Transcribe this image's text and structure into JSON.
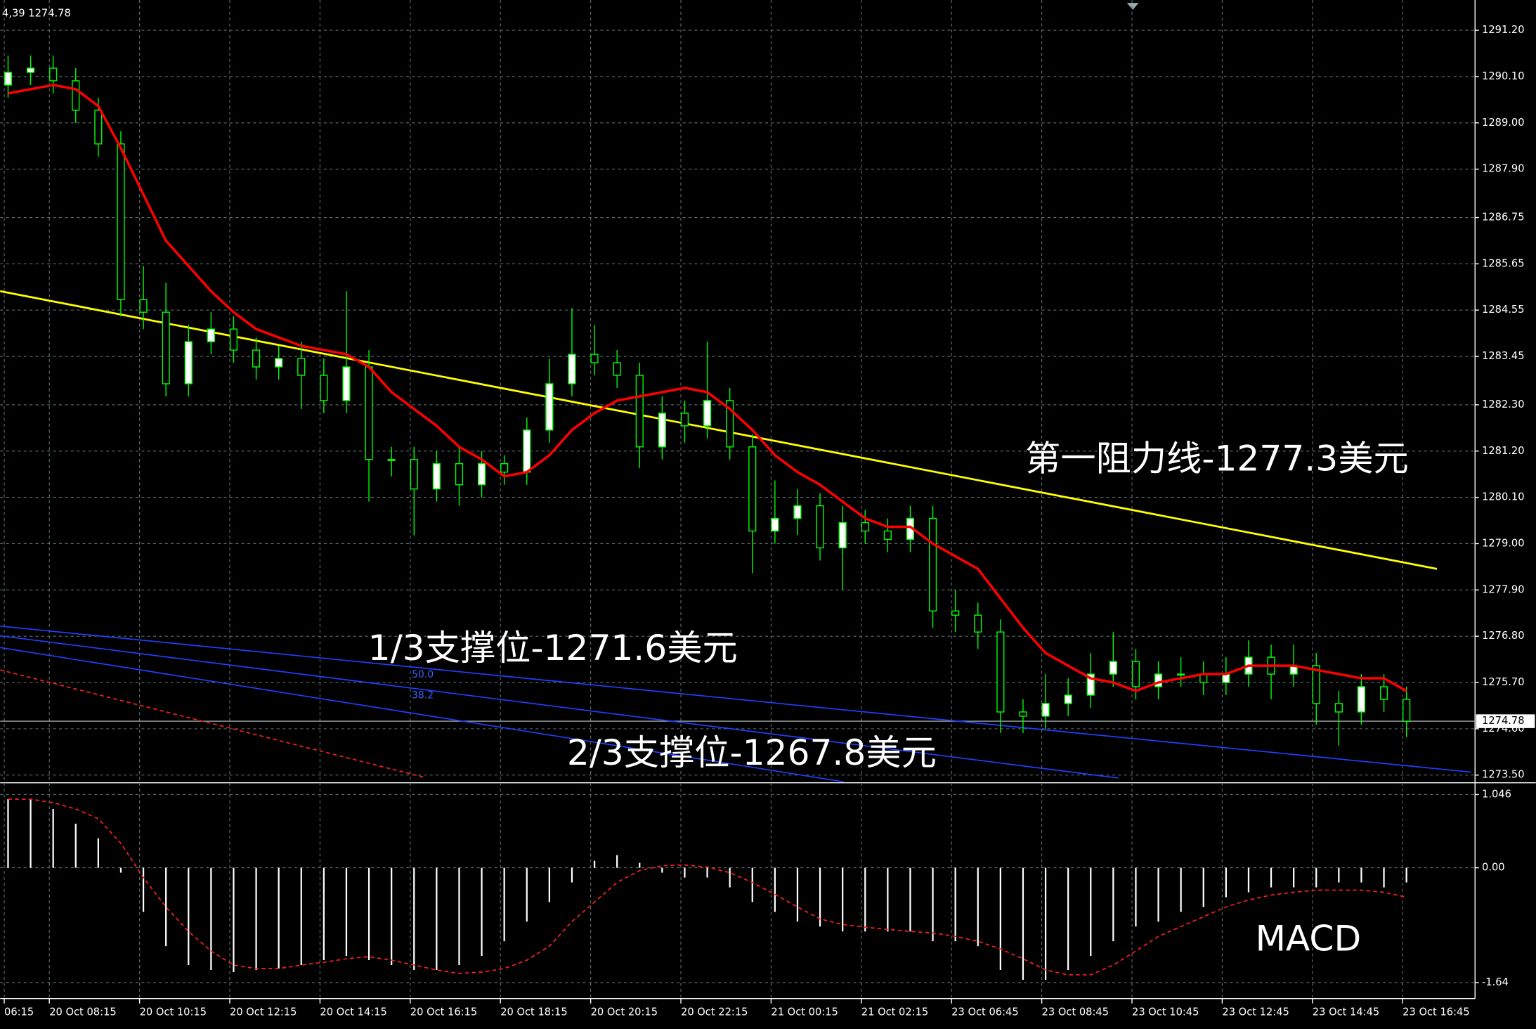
{
  "chart_data": [
    {
      "type": "candlestick",
      "header": "4,39 1274.78",
      "x": [
        0,
        1,
        2,
        3,
        4,
        5,
        6,
        7,
        8,
        9,
        10,
        11,
        12,
        13,
        14,
        15,
        16,
        17,
        18,
        19,
        20,
        21,
        22,
        23,
        24,
        25,
        26,
        27,
        28,
        29,
        30,
        31,
        32,
        33,
        34,
        35,
        36,
        37,
        38,
        39,
        40,
        41,
        42,
        43,
        44,
        45,
        46,
        47,
        48,
        49,
        50,
        51,
        52,
        53,
        54,
        55,
        56,
        57,
        58,
        59,
        60,
        61,
        62
      ],
      "open": [
        1289.9,
        1290.2,
        1290.3,
        1290.0,
        1289.3,
        1288.5,
        1284.8,
        1284.5,
        1282.8,
        1283.8,
        1284.1,
        1283.6,
        1283.2,
        1283.4,
        1283.0,
        1282.4,
        1283.2,
        1281.0,
        1281.0,
        1280.3,
        1280.9,
        1280.4,
        1280.9,
        1280.7,
        1281.7,
        1282.8,
        1283.5,
        1283.3,
        1283.0,
        1281.3,
        1282.1,
        1281.8,
        1282.4,
        1281.3,
        1279.3,
        1279.6,
        1279.9,
        1278.9,
        1279.5,
        1279.3,
        1279.1,
        1279.6,
        1277.4,
        1277.3,
        1276.9,
        1275.0,
        1274.9,
        1275.2,
        1275.4,
        1275.9,
        1276.2,
        1275.6,
        1275.9,
        1275.9,
        1275.7,
        1275.9,
        1276.3,
        1275.9,
        1276.1,
        1275.2,
        1275.0,
        1275.6,
        1275.3
      ],
      "high": [
        1290.6,
        1290.6,
        1290.6,
        1290.3,
        1289.6,
        1288.8,
        1285.6,
        1285.2,
        1284.2,
        1284.5,
        1284.4,
        1283.9,
        1283.7,
        1283.8,
        1283.4,
        1285.0,
        1283.6,
        1281.3,
        1281.3,
        1281.2,
        1281.3,
        1281.2,
        1281.1,
        1282.0,
        1283.4,
        1284.6,
        1284.2,
        1283.6,
        1283.3,
        1282.5,
        1282.4,
        1283.8,
        1282.7,
        1281.6,
        1280.5,
        1280.3,
        1280.2,
        1279.9,
        1279.8,
        1279.6,
        1279.9,
        1279.9,
        1277.9,
        1277.6,
        1277.2,
        1275.3,
        1275.9,
        1275.8,
        1276.4,
        1276.9,
        1276.5,
        1276.2,
        1276.3,
        1276.2,
        1276.3,
        1276.7,
        1276.6,
        1276.6,
        1276.4,
        1275.5,
        1275.9,
        1275.9,
        1275.6
      ],
      "low": [
        1289.6,
        1289.9,
        1289.7,
        1289.0,
        1288.2,
        1284.4,
        1284.1,
        1282.5,
        1282.5,
        1283.5,
        1283.3,
        1282.9,
        1282.9,
        1282.2,
        1282.1,
        1282.1,
        1280.0,
        1280.6,
        1279.2,
        1280.0,
        1279.9,
        1280.1,
        1280.4,
        1280.4,
        1281.4,
        1282.5,
        1283.0,
        1282.7,
        1280.8,
        1281.0,
        1281.4,
        1281.5,
        1281.0,
        1278.3,
        1279.0,
        1279.2,
        1278.6,
        1277.9,
        1279.0,
        1278.8,
        1278.8,
        1277.0,
        1276.9,
        1276.5,
        1274.5,
        1274.5,
        1274.6,
        1274.9,
        1275.1,
        1275.6,
        1275.3,
        1275.3,
        1275.6,
        1275.4,
        1275.4,
        1275.6,
        1275.3,
        1275.6,
        1274.7,
        1274.2,
        1274.7,
        1275.0,
        1274.4
      ],
      "close": [
        1290.2,
        1290.3,
        1290.0,
        1289.3,
        1288.5,
        1284.8,
        1284.5,
        1282.8,
        1283.8,
        1284.1,
        1283.6,
        1283.2,
        1283.4,
        1283.0,
        1282.4,
        1283.2,
        1281.0,
        1281.0,
        1280.3,
        1280.9,
        1280.4,
        1280.9,
        1280.7,
        1281.7,
        1282.8,
        1283.5,
        1283.3,
        1283.0,
        1281.3,
        1282.1,
        1281.8,
        1282.4,
        1281.3,
        1279.3,
        1279.6,
        1279.9,
        1278.9,
        1279.5,
        1279.3,
        1279.1,
        1279.6,
        1277.4,
        1277.3,
        1276.9,
        1275.0,
        1274.9,
        1275.2,
        1275.4,
        1275.9,
        1276.2,
        1275.6,
        1275.9,
        1275.9,
        1275.7,
        1275.9,
        1276.3,
        1275.9,
        1276.1,
        1275.2,
        1275.0,
        1275.6,
        1275.3,
        1274.78
      ],
      "up_color": "#ffffff",
      "down_color": "#000000",
      "wick_color": "#00ff00",
      "ma": {
        "color": "#ff0000",
        "values": [
          1289.7,
          1289.8,
          1289.9,
          1289.8,
          1289.4,
          1288.4,
          1287.3,
          1286.2,
          1285.6,
          1285.0,
          1284.5,
          1284.1,
          1283.9,
          1283.7,
          1283.6,
          1283.5,
          1283.2,
          1282.6,
          1282.2,
          1281.8,
          1281.3,
          1281.0,
          1280.6,
          1280.7,
          1281.1,
          1281.7,
          1282.1,
          1282.4,
          1282.5,
          1282.6,
          1282.7,
          1282.6,
          1282.2,
          1281.7,
          1281.1,
          1280.7,
          1280.4,
          1280.0,
          1279.6,
          1279.4,
          1279.4,
          1279.0,
          1278.7,
          1278.4,
          1277.7,
          1277.0,
          1276.4,
          1276.1,
          1275.8,
          1275.7,
          1275.5,
          1275.7,
          1275.8,
          1275.9,
          1275.9,
          1276.1,
          1276.1,
          1276.1,
          1276.0,
          1275.9,
          1275.8,
          1275.8,
          1275.5
        ]
      },
      "lines": [
        {
          "color": "#ffff00",
          "x": [
            -0.35,
            63.35
          ],
          "values": [
            1285.0,
            1278.4
          ]
        },
        {
          "color": "#2040ff",
          "x": [
            -0.35,
            64.87
          ],
          "values": [
            1277.04,
            1273.57
          ]
        },
        {
          "color": "#2040ff",
          "x": [
            -0.35,
            49.22
          ],
          "values": [
            1276.81,
            1273.43
          ]
        },
        {
          "color": "#2040ff",
          "x": [
            -0.35,
            37.04
          ],
          "values": [
            1276.53,
            1273.34
          ]
        },
        {
          "color": "#ff2020",
          "dashed": true,
          "x": [
            -0.35,
            18.43
          ],
          "values": [
            1276.0,
            1273.45
          ]
        }
      ],
      "fib_labels": [
        {
          "text": "50.0",
          "x": 17.9,
          "y": 1275.88
        },
        {
          "text": "38.2",
          "x": 17.9,
          "y": 1275.39
        }
      ],
      "annotations": [
        {
          "text": "第一阻力线-1277.3美元",
          "x": 45.1,
          "y": 1280.96
        },
        {
          "text": "1/3支撑位-1271.6美元",
          "x": 15.96,
          "y": 1276.46
        },
        {
          "text": "2/3支撑位-1267.8美元",
          "x": 24.78,
          "y": 1273.97
        }
      ],
      "last_price": 1274.78,
      "xlim": [
        -0.35,
        65.04
      ],
      "ylim": [
        1273.34,
        1291.92
      ],
      "grid": true,
      "yticks": [
        {
          "value": 1291.2,
          "label": "1291.20"
        },
        {
          "value": 1290.1,
          "label": "1290.10"
        },
        {
          "value": 1289,
          "label": "1289.00"
        },
        {
          "value": 1287.9,
          "label": "1287.90"
        },
        {
          "value": 1286.75,
          "label": "1286.75"
        },
        {
          "value": 1285.65,
          "label": "1285.65"
        },
        {
          "value": 1284.55,
          "label": "1284.55"
        },
        {
          "value": 1283.45,
          "label": "1283.45"
        },
        {
          "value": 1282.3,
          "label": "1282.30"
        },
        {
          "value": 1281.2,
          "label": "1281.20"
        },
        {
          "value": 1280.1,
          "label": "1280.10"
        },
        {
          "value": 1279,
          "label": "1279.00"
        },
        {
          "value": 1277.9,
          "label": "1277.90"
        },
        {
          "value": 1276.8,
          "label": "1276.80"
        },
        {
          "value": 1275.7,
          "label": "1275.70"
        },
        {
          "value": 1274.6,
          "label": "1274.60"
        },
        {
          "value": 1273.5,
          "label": "1273.50"
        }
      ],
      "xticks": [
        {
          "value": -0.17,
          "label": "06:15"
        },
        {
          "value": 1.83,
          "label": "20 Oct 08:15"
        },
        {
          "value": 5.83,
          "label": "20 Oct 10:15"
        },
        {
          "value": 9.83,
          "label": "20 Oct 12:15"
        },
        {
          "value": 13.83,
          "label": "20 Oct 14:15"
        },
        {
          "value": 17.83,
          "label": "20 Oct 16:15"
        },
        {
          "value": 21.83,
          "label": "20 Oct 18:15"
        },
        {
          "value": 25.83,
          "label": "20 Oct 20:15"
        },
        {
          "value": 29.83,
          "label": "20 Oct 22:15"
        },
        {
          "value": 33.83,
          "label": "21 Oct 00:15"
        },
        {
          "value": 37.83,
          "label": "21 Oct 02:15"
        },
        {
          "value": 41.83,
          "label": "23 Oct 06:45"
        },
        {
          "value": 45.83,
          "label": "23 Oct 08:45"
        },
        {
          "value": 49.83,
          "label": "23 Oct 10:45"
        },
        {
          "value": 53.83,
          "label": "23 Oct 12:45"
        },
        {
          "value": 57.83,
          "label": "23 Oct 14:45"
        },
        {
          "value": 61.83,
          "label": "23 Oct 16:45"
        }
      ]
    },
    {
      "type": "macd",
      "x": [
        0,
        1,
        2,
        3,
        4,
        5,
        6,
        7,
        8,
        9,
        10,
        11,
        12,
        13,
        14,
        15,
        16,
        17,
        18,
        19,
        20,
        21,
        22,
        23,
        24,
        25,
        26,
        27,
        28,
        29,
        30,
        31,
        32,
        33,
        34,
        35,
        36,
        37,
        38,
        39,
        40,
        41,
        42,
        43,
        44,
        45,
        46,
        47,
        48,
        49,
        50,
        51,
        52,
        53,
        54,
        55,
        56,
        57,
        58,
        59,
        60,
        61,
        62
      ],
      "histogram": {
        "color": "#ffffff",
        "values": [
          0.98,
          0.98,
          0.84,
          0.63,
          0.42,
          -0.07,
          -0.63,
          -1.12,
          -1.39,
          -1.46,
          -1.49,
          -1.46,
          -1.44,
          -1.39,
          -1.32,
          -1.26,
          -1.32,
          -1.39,
          -1.46,
          -1.46,
          -1.39,
          -1.26,
          -1.05,
          -0.77,
          -0.49,
          -0.21,
          0.1,
          0.18,
          0.07,
          -0.07,
          -0.14,
          -0.14,
          -0.28,
          -0.49,
          -0.63,
          -0.77,
          -0.84,
          -0.91,
          -0.91,
          -0.91,
          -0.91,
          -1.05,
          -1.05,
          -1.12,
          -1.46,
          -1.6,
          -1.6,
          -1.46,
          -1.26,
          -1.05,
          -0.84,
          -0.77,
          -0.63,
          -0.56,
          -0.42,
          -0.35,
          -0.28,
          -0.28,
          -0.28,
          -0.21,
          -0.21,
          -0.28,
          -0.21
        ]
      },
      "signal": {
        "color": "#ff2020",
        "values": [
          0.98,
          0.98,
          0.93,
          0.84,
          0.7,
          0.35,
          -0.14,
          -0.56,
          -0.91,
          -1.19,
          -1.39,
          -1.44,
          -1.44,
          -1.39,
          -1.35,
          -1.3,
          -1.27,
          -1.32,
          -1.39,
          -1.46,
          -1.51,
          -1.49,
          -1.44,
          -1.32,
          -1.12,
          -0.77,
          -0.49,
          -0.21,
          -0.04,
          0.03,
          0.04,
          0.01,
          -0.07,
          -0.21,
          -0.38,
          -0.56,
          -0.73,
          -0.81,
          -0.85,
          -0.88,
          -0.91,
          -0.93,
          -0.98,
          -1.05,
          -1.16,
          -1.3,
          -1.46,
          -1.53,
          -1.53,
          -1.39,
          -1.19,
          -0.98,
          -0.84,
          -0.7,
          -0.56,
          -0.46,
          -0.39,
          -0.35,
          -0.32,
          -0.32,
          -0.32,
          -0.35,
          -0.42
        ]
      },
      "annotations": [
        {
          "text": "MACD",
          "x": 55.3,
          "y": -1.046
        }
      ],
      "xlim": [
        -0.35,
        65.04
      ],
      "ylim": [
        -1.855,
        1.186
      ],
      "grid": true,
      "yticks": [
        1.046,
        {
          "value": 0,
          "label": "0.00"
        },
        -1.64
      ]
    }
  ]
}
